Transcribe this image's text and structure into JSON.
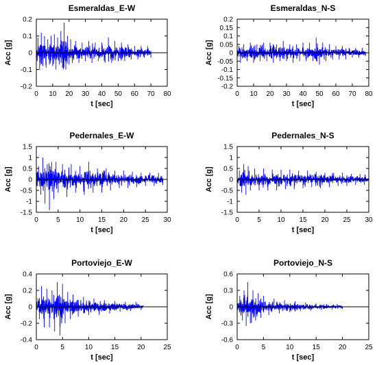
{
  "chart_data": [
    {
      "type": "line",
      "title": "Esmeraldas_E-W",
      "xlabel": "t [sec]",
      "ylabel": "Acc [g]",
      "xlim": [
        0,
        80
      ],
      "ylim": [
        -0.2,
        0.2
      ],
      "xticks": [
        0,
        10,
        20,
        30,
        40,
        50,
        60,
        70,
        80
      ],
      "yticks": [
        -0.2,
        -0.1,
        0,
        0.1,
        0.2
      ],
      "ytick_labels": [
        "-0.2",
        "-0.1",
        "0",
        "0.1",
        "0.2"
      ],
      "color": "#0000ff",
      "duration": 70,
      "peaks": [
        [
          1,
          0.09
        ],
        [
          2,
          -0.1
        ],
        [
          3,
          0.12
        ],
        [
          4,
          -0.08
        ],
        [
          5,
          0.1
        ],
        [
          6,
          -0.09
        ],
        [
          7,
          0.08
        ],
        [
          8,
          -0.07
        ],
        [
          9,
          0.1
        ],
        [
          10,
          -0.08
        ],
        [
          11,
          0.11
        ],
        [
          12,
          -0.1
        ],
        [
          13,
          0.09
        ],
        [
          14,
          -0.07
        ],
        [
          15,
          0.13
        ],
        [
          16,
          -0.09
        ],
        [
          17,
          0.18
        ],
        [
          18,
          -0.1
        ],
        [
          19,
          0.1
        ],
        [
          20,
          -0.07
        ],
        [
          21,
          0.08
        ],
        [
          22,
          -0.06
        ],
        [
          24,
          0.07
        ],
        [
          26,
          -0.06
        ],
        [
          28,
          0.06
        ],
        [
          30,
          -0.05
        ],
        [
          32,
          0.07
        ],
        [
          34,
          -0.06
        ],
        [
          36,
          0.06
        ],
        [
          38,
          -0.05
        ],
        [
          40,
          0.06
        ],
        [
          42,
          -0.06
        ],
        [
          44,
          0.09
        ],
        [
          46,
          -0.06
        ],
        [
          48,
          0.07
        ],
        [
          50,
          -0.05
        ],
        [
          52,
          0.06
        ],
        [
          54,
          -0.05
        ],
        [
          56,
          0.05
        ],
        [
          58,
          -0.04
        ],
        [
          60,
          0.04
        ],
        [
          62,
          -0.04
        ],
        [
          64,
          0.04
        ],
        [
          66,
          -0.03
        ],
        [
          68,
          0.04
        ],
        [
          70,
          -0.03
        ]
      ]
    },
    {
      "type": "line",
      "title": "Esmeraldas_N-S",
      "xlabel": "t [sec]",
      "ylabel": "Acc [g]",
      "xlim": [
        0,
        80
      ],
      "ylim": [
        -0.2,
        0.2
      ],
      "xticks": [
        0,
        10,
        20,
        30,
        40,
        50,
        60,
        70,
        80
      ],
      "yticks": [
        -0.2,
        -0.15,
        -0.1,
        -0.05,
        0,
        0.05,
        0.1,
        0.15,
        0.2
      ],
      "ytick_labels": [
        "-0.2",
        "-0.15",
        "-0.1",
        "-0.05",
        "0",
        "0.05",
        "0.1",
        "0.15",
        "0.2"
      ],
      "color": "#0000ff",
      "duration": 78,
      "peaks": [
        [
          1,
          0.04
        ],
        [
          2,
          -0.06
        ],
        [
          4,
          0.05
        ],
        [
          6,
          -0.05
        ],
        [
          8,
          0.06
        ],
        [
          10,
          -0.06
        ],
        [
          12,
          0.05
        ],
        [
          14,
          -0.05
        ],
        [
          16,
          0.06
        ],
        [
          18,
          -0.05
        ],
        [
          20,
          0.06
        ],
        [
          22,
          -0.06
        ],
        [
          24,
          0.05
        ],
        [
          26,
          -0.05
        ],
        [
          28,
          0.07
        ],
        [
          30,
          -0.05
        ],
        [
          32,
          0.05
        ],
        [
          34,
          -0.06
        ],
        [
          36,
          0.05
        ],
        [
          38,
          -0.05
        ],
        [
          40,
          0.06
        ],
        [
          42,
          -0.05
        ],
        [
          44,
          0.06
        ],
        [
          46,
          -0.05
        ],
        [
          48,
          0.09
        ],
        [
          50,
          -0.07
        ],
        [
          52,
          0.06
        ],
        [
          54,
          -0.05
        ],
        [
          56,
          0.05
        ],
        [
          58,
          -0.04
        ],
        [
          60,
          0.04
        ],
        [
          62,
          -0.04
        ],
        [
          64,
          0.04
        ],
        [
          66,
          -0.04
        ],
        [
          68,
          0.03
        ],
        [
          70,
          -0.03
        ],
        [
          72,
          0.03
        ],
        [
          74,
          -0.03
        ],
        [
          76,
          0.03
        ],
        [
          78,
          -0.02
        ]
      ]
    },
    {
      "type": "line",
      "title": "Pedernales_E-W",
      "xlabel": "t [sec]",
      "ylabel": "Acc [g]",
      "xlim": [
        0,
        30
      ],
      "ylim": [
        -1.5,
        1.5
      ],
      "xticks": [
        0,
        5,
        10,
        15,
        20,
        25,
        30
      ],
      "yticks": [
        -1.5,
        -1,
        -0.5,
        0,
        0.5,
        1,
        1.5
      ],
      "ytick_labels": [
        "-1.5",
        "-1",
        "-0.5",
        "0",
        "0.5",
        "1",
        "1.5"
      ],
      "color": "#0000ff",
      "duration": 29,
      "peaks": [
        [
          0.5,
          0.6
        ],
        [
          1,
          -0.7
        ],
        [
          1.5,
          1.0
        ],
        [
          2,
          -1.1
        ],
        [
          2.5,
          0.7
        ],
        [
          3,
          -1.4
        ],
        [
          3.5,
          0.8
        ],
        [
          4,
          -0.9
        ],
        [
          4.5,
          0.8
        ],
        [
          5,
          -0.6
        ],
        [
          6,
          0.7
        ],
        [
          7,
          -0.8
        ],
        [
          8,
          0.7
        ],
        [
          9,
          -0.6
        ],
        [
          10,
          0.6
        ],
        [
          11,
          -0.7
        ],
        [
          12,
          0.8
        ],
        [
          13,
          -0.6
        ],
        [
          14,
          0.5
        ],
        [
          15,
          -0.6
        ],
        [
          16,
          0.5
        ],
        [
          17,
          -0.5
        ],
        [
          18,
          0.4
        ],
        [
          19,
          -0.4
        ],
        [
          20,
          0.4
        ],
        [
          21,
          -0.4
        ],
        [
          22,
          0.35
        ],
        [
          23,
          -0.35
        ],
        [
          24,
          0.3
        ],
        [
          25,
          -0.3
        ],
        [
          26,
          0.3
        ],
        [
          27,
          -0.3
        ],
        [
          28,
          0.3
        ],
        [
          29,
          -0.25
        ]
      ]
    },
    {
      "type": "line",
      "title": "Pedernales_N-S",
      "xlabel": "t [sec]",
      "ylabel": "Acc [g]",
      "xlim": [
        0,
        30
      ],
      "ylim": [
        -1.5,
        1.5
      ],
      "xticks": [
        0,
        5,
        10,
        15,
        20,
        25,
        30
      ],
      "yticks": [
        -1.5,
        -1,
        -0.5,
        0,
        0.5,
        1,
        1.5
      ],
      "ytick_labels": [
        "-1.5",
        "-1",
        "-0.5",
        "0",
        "0.5",
        "1",
        "1.5"
      ],
      "color": "#0000ff",
      "duration": 30,
      "peaks": [
        [
          0.5,
          0.4
        ],
        [
          1,
          -0.6
        ],
        [
          1.5,
          0.7
        ],
        [
          2,
          -0.7
        ],
        [
          2.5,
          0.6
        ],
        [
          3,
          -0.5
        ],
        [
          4,
          0.5
        ],
        [
          5,
          -0.5
        ],
        [
          6,
          0.5
        ],
        [
          7,
          -0.5
        ],
        [
          8,
          0.45
        ],
        [
          9,
          -0.5
        ],
        [
          10,
          0.45
        ],
        [
          11,
          -0.45
        ],
        [
          12,
          0.45
        ],
        [
          13,
          -0.45
        ],
        [
          14,
          0.4
        ],
        [
          15,
          -0.4
        ],
        [
          16,
          0.4
        ],
        [
          17,
          -0.35
        ],
        [
          18,
          0.35
        ],
        [
          19,
          -0.4
        ],
        [
          20,
          0.3
        ],
        [
          21,
          -0.35
        ],
        [
          22,
          0.3
        ],
        [
          23,
          -0.3
        ],
        [
          24,
          0.3
        ],
        [
          25,
          -0.3
        ],
        [
          26,
          0.25
        ],
        [
          27,
          -0.25
        ],
        [
          28,
          0.25
        ],
        [
          29,
          -0.25
        ],
        [
          30,
          0.2
        ]
      ]
    },
    {
      "type": "line",
      "title": "Portoviejo_E-W",
      "xlabel": "t [sec]",
      "ylabel": "Acc [g]",
      "xlim": [
        0,
        25
      ],
      "ylim": [
        -0.4,
        0.4
      ],
      "xticks": [
        0,
        5,
        10,
        15,
        20,
        25
      ],
      "yticks": [
        -0.4,
        -0.2,
        0,
        0.2,
        0.4
      ],
      "ytick_labels": [
        "-0.4",
        "-0.2",
        "0",
        "0.2",
        "0.4"
      ],
      "color": "#0000ff",
      "duration": 20.5,
      "peaks": [
        [
          0.3,
          0.1
        ],
        [
          0.6,
          -0.15
        ],
        [
          1,
          0.25
        ],
        [
          1.5,
          -0.25
        ],
        [
          2,
          0.22
        ],
        [
          2.5,
          -0.25
        ],
        [
          3,
          0.2
        ],
        [
          3.5,
          -0.3
        ],
        [
          4,
          0.3
        ],
        [
          4.5,
          -0.35
        ],
        [
          5,
          0.28
        ],
        [
          5.5,
          -0.2
        ],
        [
          6,
          0.18
        ],
        [
          6.5,
          -0.15
        ],
        [
          7,
          0.15
        ],
        [
          8,
          -0.12
        ],
        [
          9,
          0.12
        ],
        [
          10,
          -0.1
        ],
        [
          11,
          0.1
        ],
        [
          12,
          -0.1
        ],
        [
          13,
          0.08
        ],
        [
          14,
          -0.08
        ],
        [
          15,
          0.07
        ],
        [
          16,
          -0.06
        ],
        [
          17,
          0.06
        ],
        [
          18,
          -0.05
        ],
        [
          19,
          0.06
        ],
        [
          20,
          -0.04
        ]
      ]
    },
    {
      "type": "line",
      "title": "Portoviejo_N-S",
      "xlabel": "t [sec]",
      "ylabel": "Acc [g]",
      "xlim": [
        0,
        25
      ],
      "ylim": [
        -0.6,
        0.6
      ],
      "xticks": [
        0,
        5,
        10,
        15,
        20,
        25
      ],
      "yticks": [
        -0.6,
        -0.3,
        0,
        0.3,
        0.6
      ],
      "ytick_labels": [
        "-0.6",
        "-0.3",
        "0",
        "0.3",
        "0.6"
      ],
      "color": "#0000ff",
      "duration": 20,
      "peaks": [
        [
          0.5,
          0.2
        ],
        [
          1,
          -0.25
        ],
        [
          1.3,
          0.3
        ],
        [
          1.7,
          -0.35
        ],
        [
          2,
          0.45
        ],
        [
          2.5,
          -0.3
        ],
        [
          3,
          0.3
        ],
        [
          3.5,
          -0.25
        ],
        [
          4,
          0.25
        ],
        [
          4.5,
          -0.2
        ],
        [
          5,
          0.2
        ],
        [
          6,
          -0.15
        ],
        [
          7,
          0.15
        ],
        [
          8,
          -0.12
        ],
        [
          9,
          0.12
        ],
        [
          10,
          -0.1
        ],
        [
          11,
          0.1
        ],
        [
          12,
          -0.08
        ],
        [
          13,
          0.08
        ],
        [
          14,
          -0.07
        ],
        [
          15,
          0.06
        ],
        [
          16,
          -0.06
        ],
        [
          17,
          0.05
        ],
        [
          18,
          -0.05
        ],
        [
          19,
          0.05
        ],
        [
          20,
          -0.04
        ]
      ]
    }
  ]
}
